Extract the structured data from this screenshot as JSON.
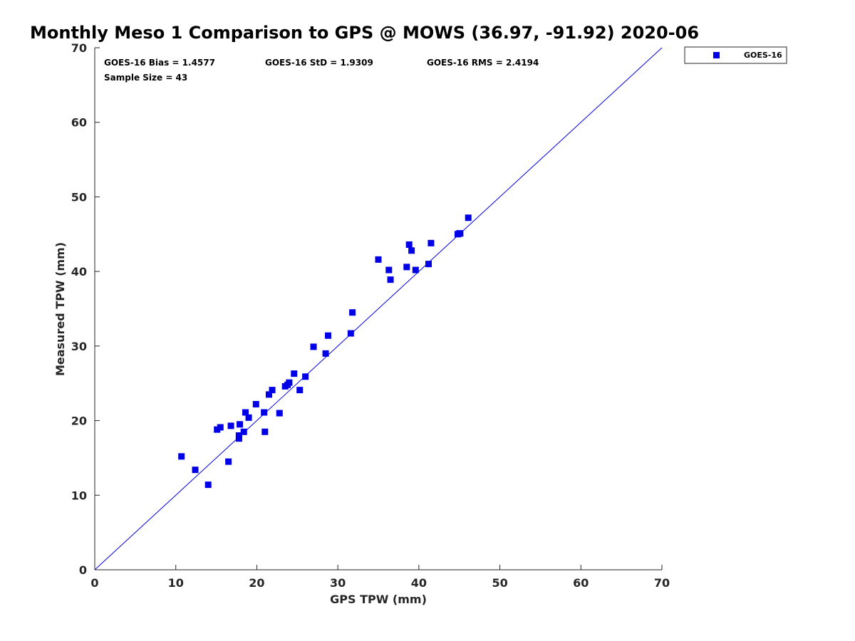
{
  "chart_data": {
    "type": "scatter",
    "title": "Monthly Meso 1 Comparison to GPS @ MOWS (36.97, -91.92) 2020-06",
    "xlabel": "GPS TPW (mm)",
    "ylabel": "Measured TPW (mm)",
    "xlim": [
      0,
      70
    ],
    "ylim": [
      0,
      70
    ],
    "xticks": [
      "0",
      "10",
      "20",
      "30",
      "40",
      "50",
      "60",
      "70"
    ],
    "yticks": [
      "0",
      "10",
      "20",
      "30",
      "40",
      "50",
      "60",
      "70"
    ],
    "grid": false,
    "legend_position": "outside-top-right",
    "stats": {
      "bias": "GOES-16 Bias = 1.4577",
      "std": "GOES-16 StD = 1.9309",
      "rms": "GOES-16 RMS = 2.4194",
      "sample_size": "Sample Size = 43"
    },
    "reference_line": {
      "x": [
        0,
        70
      ],
      "y": [
        0,
        70
      ],
      "color": "#0000e6"
    },
    "series": [
      {
        "name": "GOES-16",
        "marker": "square",
        "color": "#0000e6",
        "points": [
          [
            10.7,
            15.2
          ],
          [
            12.4,
            13.4
          ],
          [
            14.0,
            11.4
          ],
          [
            15.1,
            18.8
          ],
          [
            15.5,
            19.1
          ],
          [
            16.5,
            14.5
          ],
          [
            16.8,
            19.3
          ],
          [
            17.8,
            17.6
          ],
          [
            17.8,
            18.0
          ],
          [
            17.9,
            19.5
          ],
          [
            18.4,
            18.5
          ],
          [
            18.6,
            21.1
          ],
          [
            19.0,
            20.4
          ],
          [
            19.9,
            22.2
          ],
          [
            20.9,
            21.1
          ],
          [
            21.0,
            18.5
          ],
          [
            21.5,
            23.5
          ],
          [
            21.9,
            24.1
          ],
          [
            22.8,
            21.0
          ],
          [
            23.5,
            24.6
          ],
          [
            23.8,
            24.8
          ],
          [
            24.0,
            25.1
          ],
          [
            24.6,
            26.3
          ],
          [
            25.3,
            24.1
          ],
          [
            26.0,
            25.9
          ],
          [
            27.0,
            29.9
          ],
          [
            28.5,
            29.0
          ],
          [
            28.8,
            31.4
          ],
          [
            31.6,
            31.7
          ],
          [
            31.8,
            34.5
          ],
          [
            35.0,
            41.6
          ],
          [
            36.3,
            40.2
          ],
          [
            36.5,
            38.9
          ],
          [
            38.5,
            40.6
          ],
          [
            38.8,
            43.6
          ],
          [
            39.1,
            42.8
          ],
          [
            39.6,
            40.2
          ],
          [
            41.2,
            41.0
          ],
          [
            41.5,
            43.8
          ],
          [
            44.8,
            45.0
          ],
          [
            45.0,
            45.1
          ],
          [
            46.1,
            47.2
          ],
          [
            45.1,
            45.1
          ]
        ]
      }
    ]
  }
}
